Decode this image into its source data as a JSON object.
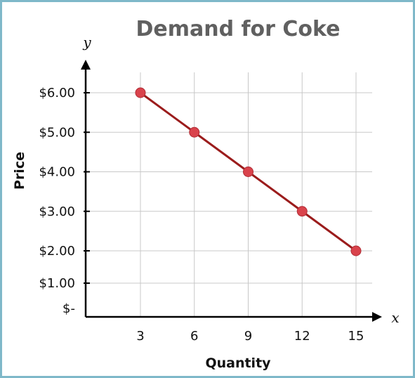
{
  "chart_data": {
    "type": "line",
    "title": "Demand for Coke",
    "xlabel": "Quantity",
    "ylabel": "Price",
    "x_axis_symbol": "x",
    "y_axis_symbol": "y",
    "x_ticks": [
      3,
      6,
      9,
      12,
      15
    ],
    "x_tick_labels": [
      "3",
      "6",
      "9",
      "12",
      "15"
    ],
    "y_ticks": [
      0,
      1,
      2,
      3,
      4,
      5,
      6
    ],
    "y_tick_labels": [
      "$-",
      "$1.00",
      "$2.00",
      "$3.00",
      "$4.00",
      "$5.00",
      "$6.00"
    ],
    "xlim": [
      0,
      16
    ],
    "ylim": [
      0,
      6.5
    ],
    "grid": true,
    "series": [
      {
        "x": [
          3,
          6,
          9,
          12,
          15
        ],
        "values": [
          6,
          5,
          4,
          3,
          2
        ]
      }
    ],
    "colors": {
      "line": "#9b1c1c",
      "marker": "#d9434c",
      "grid": "#c8c8c8",
      "axis": "#000000"
    }
  }
}
